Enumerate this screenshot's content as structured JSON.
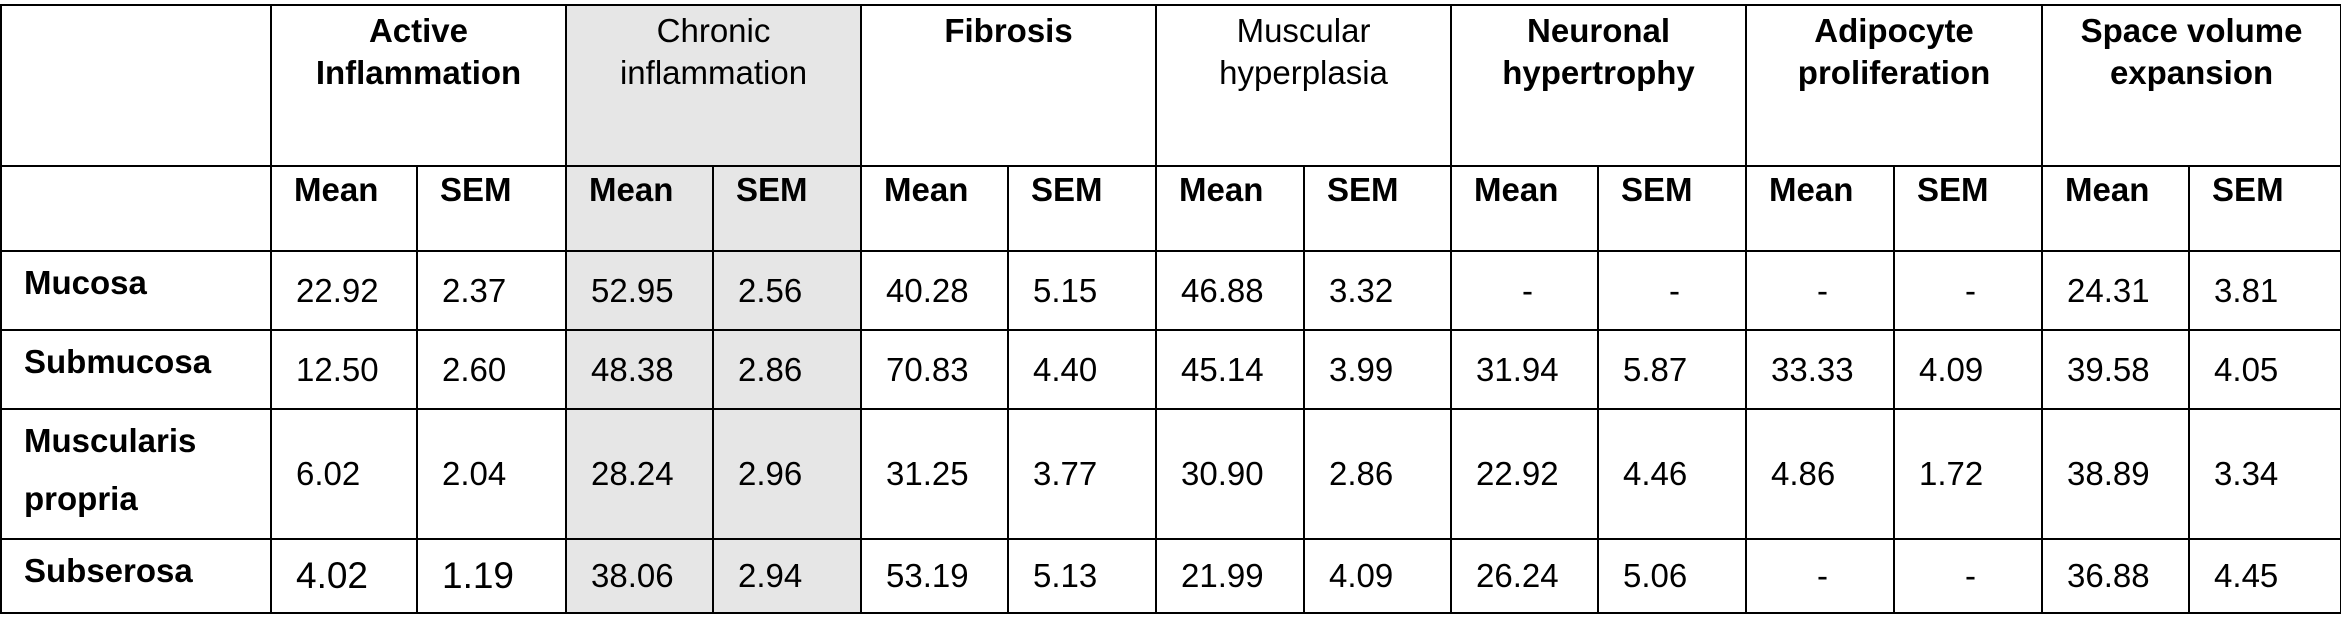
{
  "table": {
    "groups": [
      {
        "label": "Active Inflammation"
      },
      {
        "label": "Chronic inflammation"
      },
      {
        "label": "Fibrosis"
      },
      {
        "label": "Muscular hyperplasia"
      },
      {
        "label": "Neuronal hypertrophy"
      },
      {
        "label": "Adipocyte proliferation"
      },
      {
        "label": "Space volume expansion"
      }
    ],
    "subheaders": {
      "mean": "Mean",
      "sem": "SEM"
    },
    "rows": [
      {
        "label": "Mucosa",
        "values": [
          "22.92",
          "2.37",
          "52.95",
          "2.56",
          "40.28",
          "5.15",
          "46.88",
          "3.32",
          "-",
          "-",
          "-",
          "-",
          "24.31",
          "3.81"
        ]
      },
      {
        "label": "Submucosa",
        "values": [
          "12.50",
          "2.60",
          "48.38",
          "2.86",
          "70.83",
          "4.40",
          "45.14",
          "3.99",
          "31.94",
          "5.87",
          "33.33",
          "4.09",
          "39.58",
          "4.05"
        ]
      },
      {
        "label": "Muscularis propria",
        "values": [
          "6.02",
          "2.04",
          "28.24",
          "2.96",
          "31.25",
          "3.77",
          "30.90",
          "2.86",
          "22.92",
          "4.46",
          "4.86",
          "1.72",
          "38.89",
          "3.34"
        ]
      },
      {
        "label": "Subserosa",
        "values": [
          "4.02",
          "1.19",
          "38.06",
          "2.94",
          "53.19",
          "5.13",
          "21.99",
          "4.09",
          "26.24",
          "5.06",
          "-",
          "-",
          "36.88",
          "4.45"
        ]
      }
    ],
    "highlight_color": "#e6e6e6"
  }
}
